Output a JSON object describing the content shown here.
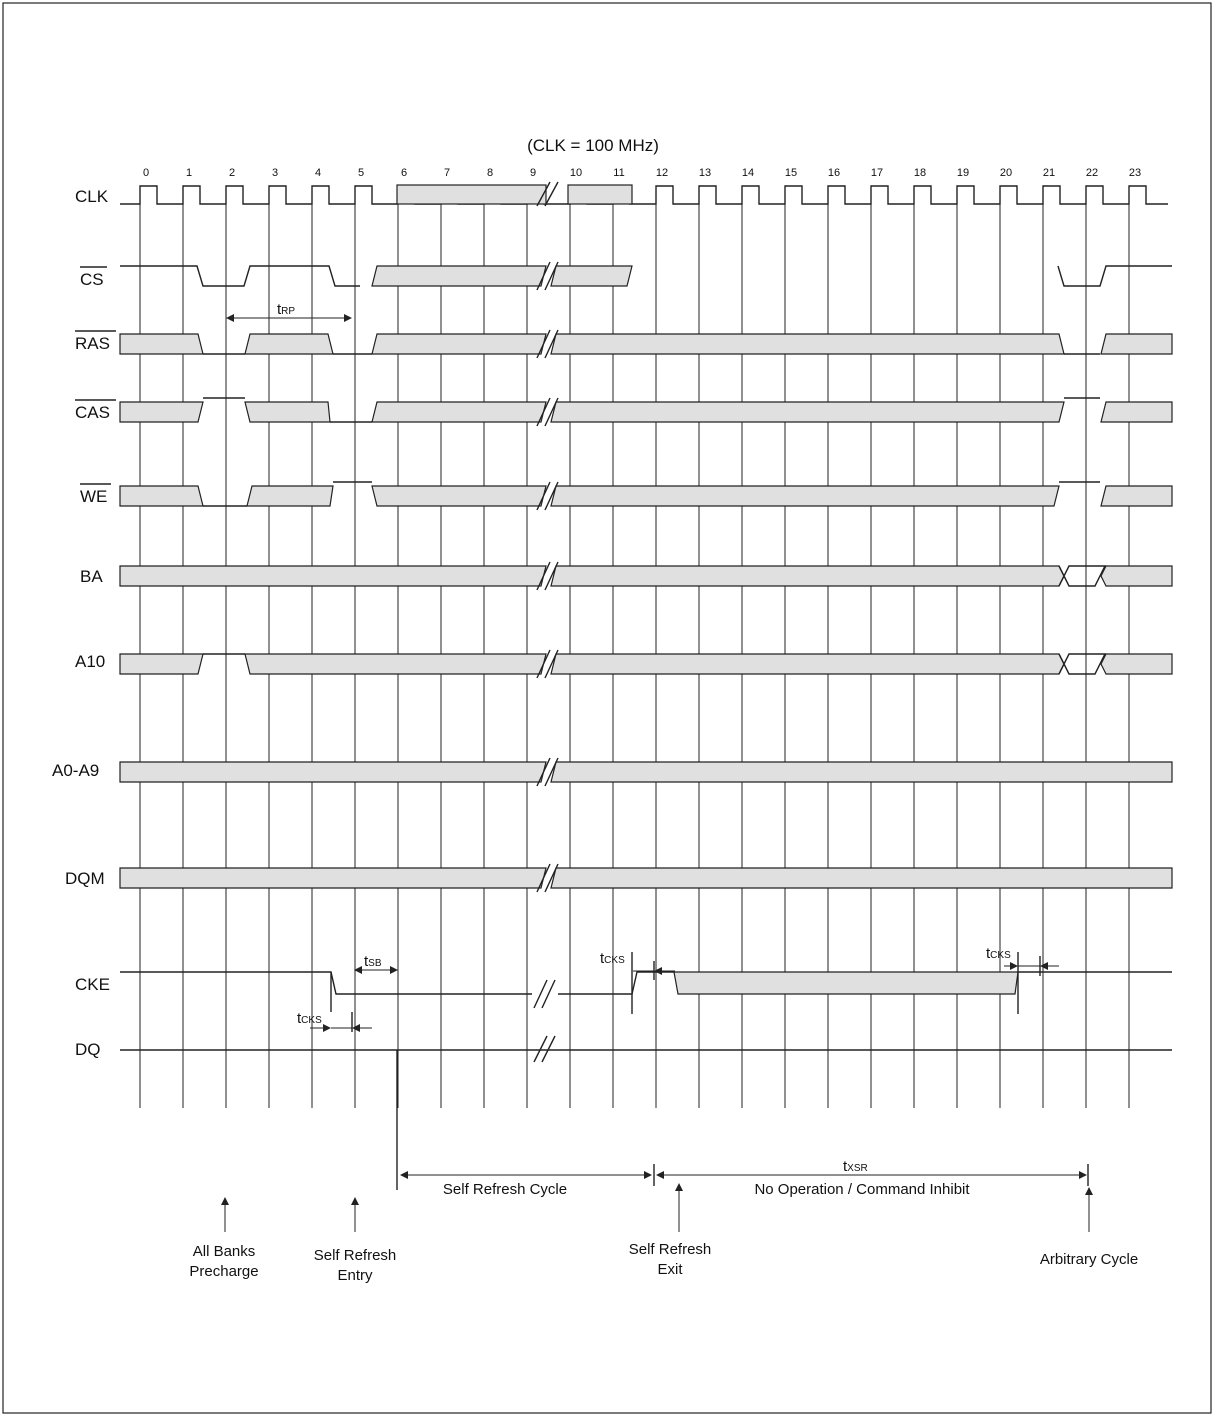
{
  "title": "(CLK = 100 MHz)",
  "clock_labels": [
    "0",
    "1",
    "2",
    "3",
    "4",
    "5",
    "6",
    "7",
    "8",
    "9",
    "10",
    "11",
    "12",
    "13",
    "14",
    "15",
    "16",
    "17",
    "18",
    "19",
    "20",
    "21",
    "22",
    "23"
  ],
  "signals": {
    "clk": "CLK",
    "cs": "CS",
    "ras": "RAS",
    "cas": "CAS",
    "we": "WE",
    "ba": "BA",
    "a10": "A10",
    "addr": "A0-A9",
    "dqm": "DQM",
    "cke": "CKE",
    "dq": "DQ"
  },
  "timing": {
    "trp": {
      "t": "t",
      "sub": "RP"
    },
    "tsb": {
      "t": "t",
      "sub": "SB"
    },
    "tcks": {
      "t": "t",
      "sub": "CKS"
    },
    "txsr": {
      "t": "t",
      "sub": "XSR"
    }
  },
  "periods": {
    "self_refresh_cycle": "Self Refresh Cycle",
    "nop": "No Operation / Command Inhibit"
  },
  "events": {
    "all_banks_1": "All Banks",
    "all_banks_2": "Precharge",
    "sr_entry_1": "Self Refresh",
    "sr_entry_2": "Entry",
    "sr_exit_1": "Self Refresh",
    "sr_exit_2": "Exit",
    "arbitrary": "Arbitrary Cycle"
  }
}
